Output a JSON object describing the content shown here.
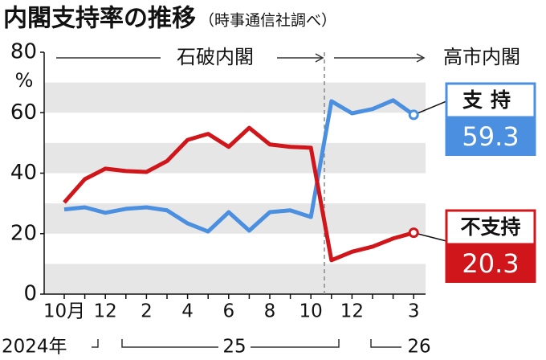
{
  "chart_data": {
    "type": "line",
    "title": "内閣支持率の推移",
    "subtitle": "（時事通信社調べ）",
    "y_unit": "%",
    "annotations": [
      "石破内閣",
      "高市内閣"
    ],
    "year_labels": [
      "2024年",
      "25",
      "26"
    ],
    "categories": [
      "10月",
      null,
      "12",
      null,
      "2",
      null,
      "4",
      null,
      "6",
      null,
      "8",
      null,
      "10",
      null,
      "12",
      null,
      null,
      "3"
    ],
    "series": [
      {
        "name": "支持",
        "color": "#4a8fe0",
        "values": [
          28,
          28.7,
          26.9,
          28.2,
          28.7,
          27.7,
          23.4,
          20.7,
          27.1,
          21,
          27.1,
          27.7,
          25.5,
          63.8,
          59.8,
          61.2,
          64.1,
          59.3
        ]
      },
      {
        "name": "不支持",
        "color": "#d0161b",
        "values": [
          30.3,
          38,
          41.5,
          40.7,
          40.4,
          44,
          51,
          53,
          48.7,
          55,
          49.5,
          48.7,
          48.4,
          11.2,
          14,
          15.7,
          18.4,
          20.3
        ]
      }
    ],
    "ylim": [
      0,
      80
    ],
    "yticks": [
      0,
      20,
      40,
      60,
      80
    ]
  }
}
